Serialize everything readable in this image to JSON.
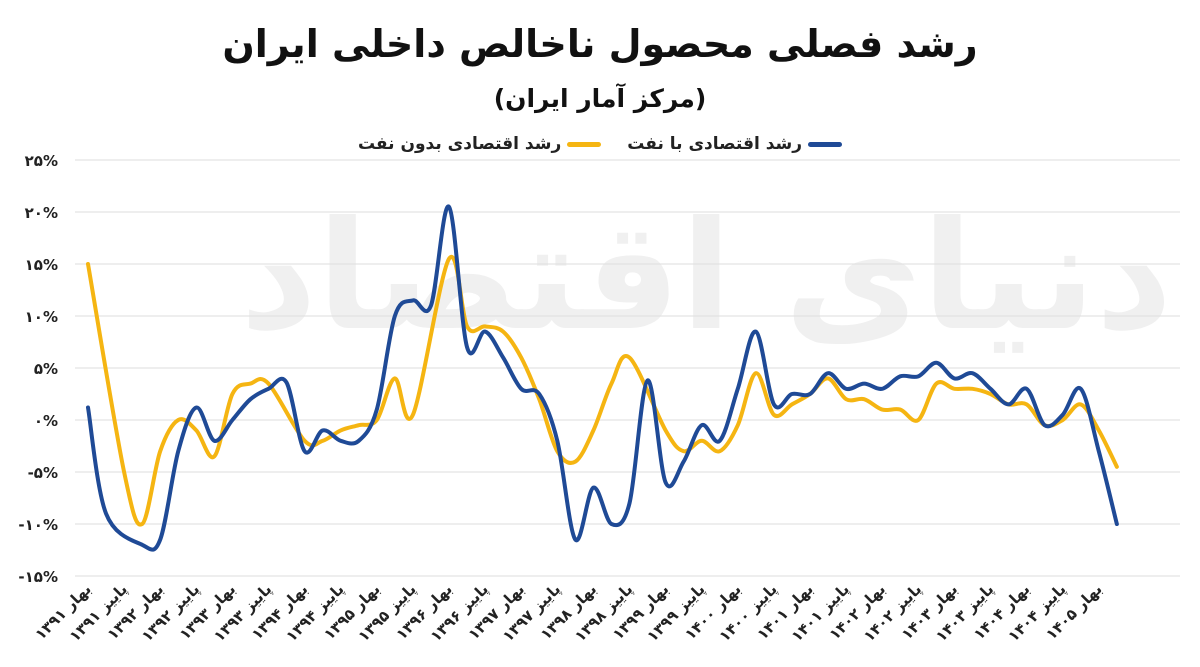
{
  "chart_data": {
    "type": "line",
    "title": "رشد فصلی محصول ناخالص داخلی ایران",
    "subtitle": "(مرکز آمار ایران)",
    "ylim": [
      -15,
      25
    ],
    "yticks": [
      -15,
      -10,
      -5,
      0,
      5,
      10,
      15,
      20,
      25
    ],
    "ytick_labels": [
      "-۱۵%",
      "-۱۰%",
      "-۵%",
      "۰%",
      "۵%",
      "۱۰%",
      "۱۵%",
      "۲۰%",
      "۲۵%"
    ],
    "x_labels": [
      "بهار ۱۳۹۱",
      "پاییز ۱۳۹۱",
      "بهار ۱۳۹۲",
      "پاییز ۱۳۹۲",
      "بهار ۱۳۹۳",
      "پاییز ۱۳۹۳",
      "بهار ۱۳۹۴",
      "پاییز ۱۳۹۴",
      "بهار ۱۳۹۵",
      "پاییز ۱۳۹۵",
      "بهار ۱۳۹۶",
      "پاییز ۱۳۹۶",
      "بهار ۱۳۹۷",
      "پاییز ۱۳۹۷",
      "بهار ۱۳۹۸",
      "پاییز ۱۳۹۸",
      "بهار ۱۳۹۹",
      "پاییز ۱۳۹۹",
      "بهار ۱۴۰۰",
      "پاییز ۱۴۰۰",
      "بهار ۱۴۰۱",
      "پاییز ۱۴۰۱",
      "بهار ۱۴۰۲",
      "پاییز ۱۴۰۲",
      "بهار ۱۴۰۳",
      "پاییز ۱۴۰۳",
      "بهار ۱۴۰۴",
      "پاییز ۱۴۰۴",
      "بهار ۱۴۰۵"
    ],
    "grid": true,
    "legend_position": "top-center",
    "series": [
      {
        "name": "رشد اقتصادی با نفت",
        "color": "#1f4a96",
        "values": [
          1.2,
          -9.0,
          -12.0,
          -11.5,
          -3.0,
          1.2,
          -2.0,
          0.0,
          2.0,
          3.0,
          3.6,
          -3.0,
          -1.0,
          -2.0,
          -2.0,
          1.0,
          10.0,
          11.5,
          11.0,
          20.5,
          7.0,
          8.5,
          6.0,
          3.0,
          2.5,
          -2.0,
          -11.5,
          -6.5,
          -10.0,
          -8.0,
          3.8,
          -6.0,
          -4.0,
          -0.5,
          -2.0,
          3.0,
          8.5,
          1.5,
          2.5,
          2.5,
          4.5,
          3.0,
          3.5,
          3.0,
          4.2,
          4.2,
          5.5,
          4.0,
          4.5,
          3.0,
          1.5,
          3.0,
          -0.5,
          0.5,
          3.0,
          -3.0,
          -10.0
        ],
        "x_index": [
          0,
          0.5,
          1.5,
          2,
          2.5,
          3,
          3.5,
          4,
          4.5,
          5,
          5.5,
          6,
          6.5,
          7,
          7.5,
          8,
          8.5,
          9,
          9.5,
          10,
          10.5,
          11,
          11.5,
          12,
          12.5,
          13,
          13.5,
          14,
          14.5,
          15,
          15.5,
          16,
          16.5,
          17,
          17.5,
          18,
          18.5,
          19,
          19.5,
          20,
          20.5,
          21,
          21.5,
          22,
          22.5,
          23,
          23.5,
          24,
          24.5,
          25,
          25.5,
          26,
          26.5,
          27,
          27.5,
          28,
          28.5
        ]
      },
      {
        "name": "رشد اقتصادی بدون نفت",
        "color": "#f5b512",
        "values": [
          15.0,
          -5.0,
          -10.0,
          -3.0,
          0.0,
          -1.0,
          -3.5,
          2.5,
          3.5,
          3.5,
          -2.0,
          -2.0,
          -1.0,
          -0.5,
          0.0,
          4.0,
          0.5,
          15.5,
          9.0,
          9.0,
          8.5,
          6.0,
          2.0,
          -3.0,
          -4.0,
          -1.0,
          3.5,
          6.0,
          -1.0,
          -3.0,
          -2.0,
          -3.0,
          -0.5,
          4.5,
          0.5,
          1.5,
          2.5,
          4.0,
          2.0,
          2.0,
          1.0,
          1.0,
          0.0,
          3.5,
          3.0,
          3.0,
          2.5,
          1.5,
          1.5,
          -0.5,
          0.0,
          1.5,
          -1.0,
          -4.5
        ],
        "x_index": [
          0,
          1,
          1.5,
          2,
          2.5,
          3,
          3.5,
          4,
          4.5,
          5,
          6,
          6.5,
          7,
          7.5,
          8,
          8.5,
          9,
          10,
          10.5,
          11,
          11.5,
          12,
          12.5,
          13,
          13.5,
          14,
          14.5,
          15,
          16,
          16.5,
          17,
          17.5,
          18,
          18.5,
          19,
          19.5,
          20,
          20.5,
          21,
          21.5,
          22,
          22.5,
          23,
          23.5,
          24,
          24.5,
          25,
          25.5,
          26,
          26.5,
          27,
          27.5,
          28,
          28.5
        ]
      }
    ]
  }
}
